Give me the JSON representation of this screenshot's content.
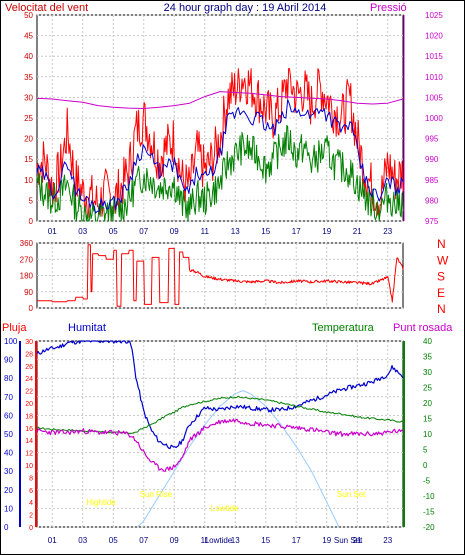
{
  "header": {
    "left_title": "Velocitat del vent",
    "center_title": "24 hour graph day : 19 Abril 2014",
    "right_title": "Pressió"
  },
  "colors": {
    "wind": "#ff0000",
    "gust_avg": "#0000cc",
    "wind_low": "#008000",
    "pressure": "#cc00cc",
    "direction": "#ff0000",
    "humidity": "#0000cc",
    "temperature": "#008000",
    "dewpoint": "#cc00cc",
    "sun_curve": "#99ccff",
    "tide_label": "#ffff00",
    "rain_axis": "#ff0000",
    "grid": "#c8c8c8",
    "background": "#ffffff"
  },
  "chart_data": [
    {
      "type": "line",
      "title": "24 hour graph day : 19 Abril 2014",
      "xlabel": "",
      "ylabel": "Velocitat del vent",
      "ylabel_right": "Pressió",
      "x_ticks": [
        "01",
        "03",
        "05",
        "07",
        "09",
        "11",
        "13",
        "15",
        "17",
        "19",
        "21",
        "23"
      ],
      "ylim": [
        0,
        50
      ],
      "y_ticks": [
        0,
        5,
        10,
        15,
        20,
        25,
        30,
        35,
        40,
        45,
        50
      ],
      "ylim_right": [
        975,
        1025
      ],
      "y_ticks_right": [
        975,
        980,
        985,
        990,
        995,
        1000,
        1005,
        1010,
        1015,
        1020,
        1025
      ],
      "grid": true,
      "series": [
        {
          "hours": [
            0,
            0.5,
            1,
            1.5,
            2,
            2.5,
            3,
            3.5,
            4,
            4.5,
            5,
            5.5,
            6,
            6.5,
            7,
            7.5,
            8,
            8.5,
            9,
            9.5,
            10,
            10.5,
            11,
            11.5,
            12,
            12.5,
            13,
            13.5,
            14,
            14.5,
            15,
            15.5,
            16,
            16.5,
            17,
            17.5,
            18,
            18.5,
            19,
            19.5,
            20,
            20.5,
            21,
            21.5,
            22,
            22.5,
            23,
            23.5,
            24
          ],
          "values": [
            13,
            15,
            8,
            12,
            22,
            10,
            7,
            6,
            4,
            7,
            5,
            8,
            12,
            22,
            25,
            20,
            15,
            18,
            20,
            10,
            8,
            17,
            12,
            15,
            20,
            30,
            32,
            35,
            33,
            30,
            27,
            25,
            28,
            35,
            30,
            32,
            28,
            33,
            30,
            27,
            25,
            30,
            20,
            12,
            8,
            5,
            14,
            10,
            12
          ]
        },
        {
          "hours": [
            0,
            0.5,
            1,
            1.5,
            2,
            2.5,
            3,
            3.5,
            4,
            4.5,
            5,
            5.5,
            6,
            6.5,
            7,
            7.5,
            8,
            8.5,
            9,
            9.5,
            10,
            10.5,
            11,
            11.5,
            12,
            12.5,
            13,
            13.5,
            14,
            14.5,
            15,
            15.5,
            16,
            16.5,
            17,
            17.5,
            18,
            18.5,
            19,
            19.5,
            20,
            20.5,
            21,
            21.5,
            22,
            22.5,
            23,
            23.5,
            24
          ],
          "values": [
            12,
            11,
            7,
            9,
            15,
            8,
            5,
            5,
            3,
            5,
            4,
            6,
            9,
            15,
            18,
            15,
            12,
            13,
            14,
            8,
            7,
            12,
            10,
            12,
            16,
            24,
            26,
            27,
            25,
            25,
            23,
            22,
            24,
            28,
            26,
            27,
            25,
            28,
            26,
            24,
            22,
            24,
            17,
            10,
            7,
            5,
            10,
            8,
            9
          ]
        },
        {
          "hours": [
            0,
            0.5,
            1,
            1.5,
            2,
            2.5,
            3,
            3.5,
            4,
            4.5,
            5,
            5.5,
            6,
            6.5,
            7,
            7.5,
            8,
            8.5,
            9,
            9.5,
            10,
            10.5,
            11,
            11.5,
            12,
            12.5,
            13,
            13.5,
            14,
            14.5,
            15,
            15.5,
            16,
            16.5,
            17,
            17.5,
            18,
            18.5,
            19,
            19.5,
            20,
            20.5,
            21,
            21.5,
            22,
            22.5,
            23,
            23.5,
            24
          ],
          "values": [
            9,
            7,
            5,
            6,
            9,
            4,
            2,
            1,
            1,
            2,
            2,
            3,
            5,
            9,
            11,
            10,
            8,
            9,
            9,
            4,
            3,
            6,
            5,
            7,
            9,
            14,
            16,
            18,
            17,
            16,
            13,
            15,
            18,
            20,
            16,
            18,
            14,
            16,
            17,
            14,
            13,
            12,
            9,
            6,
            4,
            3,
            6,
            4,
            5
          ]
        },
        {
          "hours": [
            0,
            1,
            2,
            3,
            4,
            5,
            6,
            7,
            8,
            9,
            10,
            11,
            12,
            13,
            14,
            15,
            16,
            17,
            18,
            19,
            20,
            21,
            22,
            23,
            24
          ],
          "values_right": [
            1004.8,
            1004.6,
            1004.2,
            1003.8,
            1003.0,
            1002.6,
            1002.4,
            1002.3,
            1002.6,
            1003.0,
            1003.6,
            1005.2,
            1006.4,
            1006.2,
            1006.0,
            1005.6,
            1005.2,
            1005.0,
            1004.8,
            1004.6,
            1004.2,
            1003.6,
            1003.4,
            1003.6,
            1004.6
          ]
        }
      ]
    },
    {
      "type": "line",
      "title": "",
      "ylabel": "",
      "ylim": [
        0,
        360
      ],
      "y_ticks": [
        0,
        90,
        180,
        270,
        360
      ],
      "right_labels": [
        "N",
        "W",
        "S",
        "E",
        "N"
      ],
      "x_ticks": [],
      "grid": true,
      "series": [
        {
          "hours": [
            0,
            1,
            2,
            2.5,
            3,
            3.3,
            3.5,
            3.6,
            4,
            4.5,
            5,
            5.2,
            5.5,
            6,
            6.3,
            6.5,
            7,
            7.5,
            8,
            8.3,
            8.6,
            9,
            9.3,
            9.6,
            10,
            10.5,
            11,
            12,
            13,
            14,
            15,
            16,
            17,
            18,
            19,
            20,
            21,
            22,
            23,
            23.3,
            23.6,
            24
          ],
          "values": [
            40,
            35,
            40,
            60,
            50,
            350,
            90,
            300,
            290,
            270,
            320,
            10,
            300,
            320,
            40,
            260,
            20,
            280,
            30,
            30,
            330,
            20,
            310,
            280,
            210,
            200,
            175,
            160,
            150,
            145,
            150,
            140,
            150,
            145,
            150,
            145,
            140,
            135,
            170,
            40,
            280,
            220
          ]
        }
      ]
    },
    {
      "type": "line",
      "title": "",
      "header_labels": [
        "Pluja",
        "Humitat",
        "Temperatura",
        "Punt rosada"
      ],
      "ylim": [
        0,
        30
      ],
      "y_ticks_rain": [
        0,
        2,
        4,
        6,
        8,
        10,
        12,
        14,
        16,
        18,
        20,
        22,
        24,
        26,
        28,
        30
      ],
      "ylim_humidity": [
        0,
        100
      ],
      "y_ticks_humidity": [
        0,
        10,
        20,
        30,
        40,
        50,
        60,
        70,
        80,
        90,
        100
      ],
      "ylim_temp": [
        -20,
        40
      ],
      "y_ticks_temp": [
        -20,
        -15,
        -10,
        -5,
        0,
        5,
        10,
        15,
        20,
        25,
        30,
        35,
        40
      ],
      "x_ticks": [
        "01",
        "03",
        "05",
        "07",
        "09",
        "11",
        "13",
        "15",
        "17",
        "19",
        "21",
        "23"
      ],
      "x_tick_labels_extra": [
        "Lowtide",
        "Sun Set"
      ],
      "annotations": [
        "Hightide",
        "Sun Rise",
        "Lowtide",
        "Sun Set"
      ],
      "grid": true,
      "series": [
        {
          "hours": [
            0,
            0.5,
            1,
            1.5,
            2,
            3,
            4,
            5,
            6,
            6.2,
            6.5,
            7,
            7.5,
            8,
            8.5,
            9,
            9.5,
            10,
            11,
            12,
            13,
            14,
            15,
            16,
            17,
            18,
            19,
            20,
            21,
            22,
            23,
            23.3,
            23.7,
            24
          ],
          "values_humidity": [
            93,
            95,
            96,
            97,
            99,
            100,
            100,
            100,
            100,
            97,
            80,
            62,
            52,
            46,
            44,
            42,
            46,
            55,
            64,
            63,
            65,
            64,
            63,
            63,
            65,
            68,
            71,
            74,
            76,
            78,
            82,
            86,
            83,
            81
          ]
        },
        {
          "hours": [
            0,
            1,
            2,
            3,
            4,
            5,
            6,
            6.5,
            7,
            7.5,
            8,
            8.5,
            9,
            9.5,
            10,
            11,
            12,
            13,
            14,
            15,
            16,
            17,
            18,
            19,
            20,
            21,
            22,
            23,
            23.5,
            24
          ],
          "values_temp": [
            12,
            11.5,
            11.3,
            11,
            10.8,
            10.5,
            10.3,
            10.5,
            12,
            13,
            14.5,
            16,
            17,
            18.5,
            19.5,
            20.5,
            21.5,
            22,
            21.5,
            21,
            20,
            19,
            18,
            17,
            16.5,
            15.5,
            15,
            14.5,
            14.2,
            14
          ]
        },
        {
          "hours": [
            0,
            1,
            2,
            3,
            4,
            5,
            6,
            6.5,
            7,
            7.5,
            8,
            8.5,
            9,
            9.5,
            10,
            11,
            12,
            13,
            14,
            15,
            16,
            17,
            18,
            19,
            20,
            21,
            22,
            23,
            23.5,
            24
          ],
          "values_dewpoint": [
            11,
            10.5,
            10.5,
            11,
            10.5,
            10.5,
            10,
            8,
            4,
            1,
            -1,
            -1.5,
            -0.5,
            2,
            8,
            12,
            14,
            14.5,
            13.5,
            13,
            12.5,
            12,
            11.5,
            10.5,
            10,
            10,
            10,
            10.5,
            11,
            10.5
          ]
        },
        {
          "hours": [
            6.6,
            7,
            8,
            9,
            10,
            11,
            12,
            13,
            13.5,
            14,
            15,
            16,
            17,
            18,
            19,
            19.8
          ],
          "values_sun": [
            -20,
            -18,
            -10,
            -2,
            6,
            13,
            19,
            23,
            24,
            23,
            19,
            13,
            6,
            -2,
            -12,
            -20
          ]
        }
      ]
    }
  ]
}
